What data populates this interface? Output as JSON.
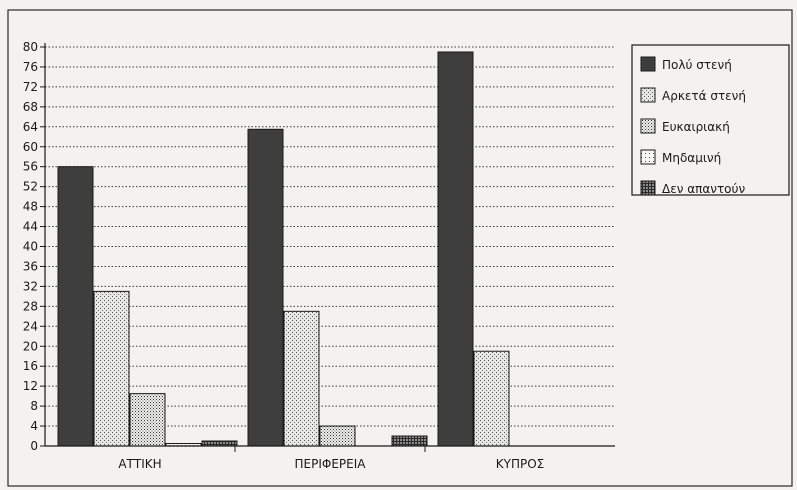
{
  "chart_data": {
    "type": "bar",
    "title": "",
    "xlabel": "",
    "ylabel": "",
    "categories": [
      "ΑΤΤΙΚΗ",
      "ΠΕΡΙΦΕΡΕΙΑ",
      "ΚΥΠΡΟΣ"
    ],
    "ylim": [
      0,
      80
    ],
    "yticks": [
      0,
      4,
      8,
      12,
      16,
      20,
      24,
      28,
      32,
      36,
      40,
      44,
      48,
      52,
      56,
      60,
      64,
      68,
      72,
      76,
      80
    ],
    "grid": true,
    "legend_position": "top-right",
    "series": [
      {
        "name": "Πολύ στενή",
        "values": [
          56,
          63.5,
          79
        ],
        "pattern": "solid-dark"
      },
      {
        "name": "Αρκετά στενή",
        "values": [
          31,
          27,
          19
        ],
        "pattern": "light-stipple"
      },
      {
        "name": "Ευκαιριακή",
        "values": [
          10.5,
          4,
          0
        ],
        "pattern": "dots"
      },
      {
        "name": "Μηδαμινή",
        "values": [
          0.5,
          0,
          0
        ],
        "pattern": "sparse-dots"
      },
      {
        "name": "Δεν απαντούν",
        "values": [
          1,
          2,
          0
        ],
        "pattern": "dense-hatch"
      }
    ]
  },
  "colors": {
    "background": "#f3f2ef",
    "ink": "#1a1a1a",
    "dark_bar": "#3e3e3e"
  }
}
